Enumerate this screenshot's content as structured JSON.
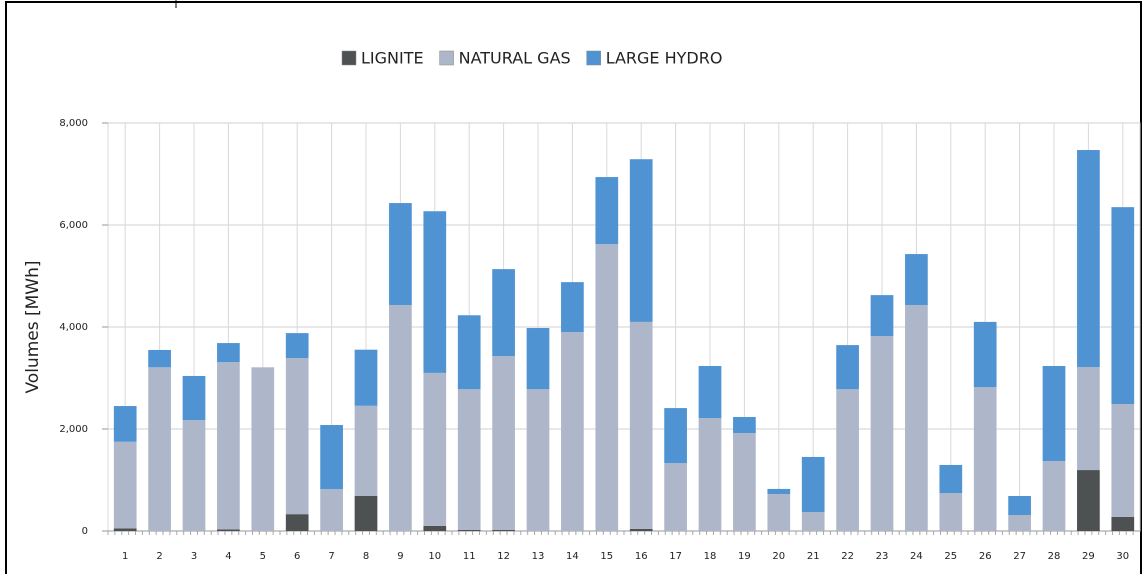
{
  "chart_data": {
    "type": "stacked-bar",
    "y_label": "Volumes [MWh]",
    "categories": [
      "1",
      "2",
      "3",
      "4",
      "5",
      "6",
      "7",
      "8",
      "9",
      "10",
      "11",
      "12",
      "13",
      "14",
      "15",
      "16",
      "17",
      "18",
      "19",
      "20",
      "21",
      "22",
      "23",
      "24",
      "25",
      "26",
      "27",
      "28",
      "29",
      "30"
    ],
    "series": [
      {
        "name": "LIGNITE",
        "color": "#4d5152",
        "values": [
          50,
          0,
          0,
          30,
          0,
          330,
          0,
          690,
          0,
          100,
          20,
          20,
          0,
          0,
          0,
          40,
          0,
          0,
          0,
          0,
          0,
          0,
          0,
          0,
          0,
          0,
          0,
          0,
          1195,
          275
        ]
      },
      {
        "name": "NATURAL GAS",
        "color": "#aeb7c9",
        "values": [
          1700,
          3210,
          2175,
          3280,
          3210,
          3060,
          823,
          1765,
          4430,
          3000,
          2760,
          3410,
          2780,
          3900,
          5625,
          4060,
          1330,
          2215,
          1920,
          725,
          372,
          2780,
          3820,
          4430,
          745,
          2820,
          313,
          1370,
          2020,
          2215
        ]
      },
      {
        "name": "LARGE HYDRO",
        "color": "#4f93d3",
        "values": [
          700,
          340,
          865,
          375,
          0,
          490,
          1255,
          1100,
          2000,
          3170,
          1450,
          1705,
          1200,
          980,
          1315,
          3190,
          1080,
          1020,
          315,
          100,
          1080,
          865,
          805,
          1000,
          550,
          1280,
          373,
          1865,
          4255,
          3860
        ]
      }
    ],
    "ylim": [
      0,
      8000
    ],
    "yticks": [
      0,
      {
        "value": 2000,
        "label": "2,000"
      },
      {
        "value": 4000,
        "label": "4,000"
      },
      {
        "value": 6000,
        "label": "6,000"
      },
      {
        "value": 8000,
        "label": "8,000"
      }
    ],
    "grid": true,
    "legend": "top"
  }
}
